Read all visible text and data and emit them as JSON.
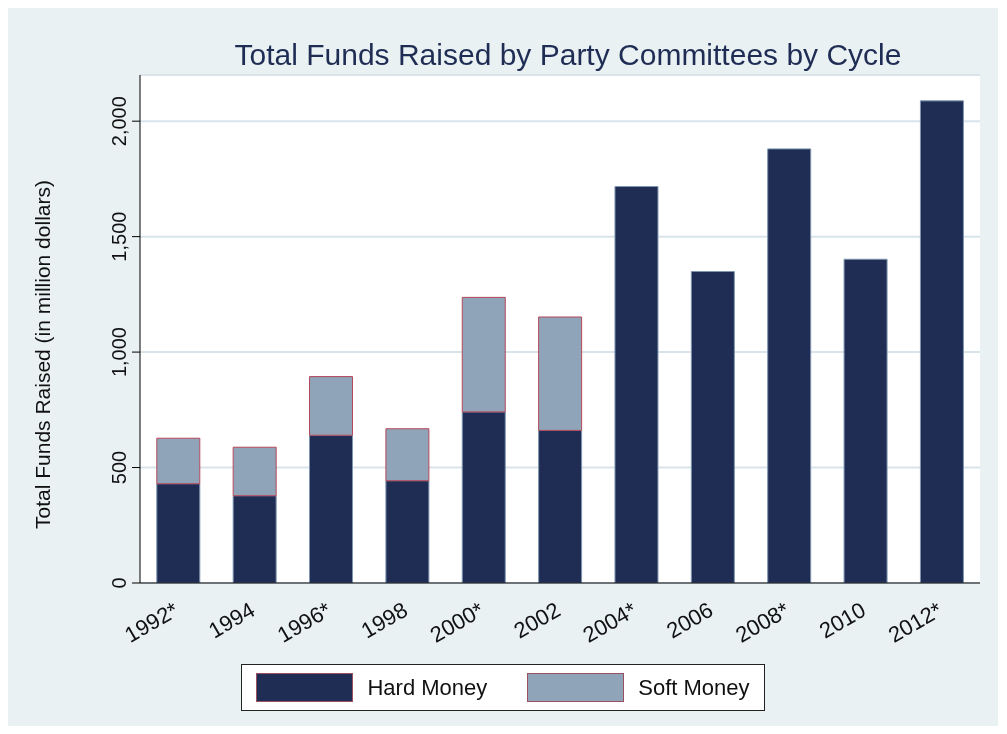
{
  "chart_data": {
    "type": "bar",
    "title": "Total Funds Raised by Party Committees by Cycle",
    "ylabel": "Total Funds Raised (in million dollars)",
    "categories": [
      "1992*",
      "1994",
      "1996*",
      "1998",
      "2000*",
      "2002",
      "2004*",
      "2006",
      "2008*",
      "2010",
      "2012*"
    ],
    "series": [
      {
        "name": "Hard Money",
        "color": "#1f2d54",
        "values": [
          430,
          378,
          640,
          443,
          741,
          661,
          1717,
          1349,
          1880,
          1402,
          2088
        ]
      },
      {
        "name": "Soft Money",
        "color": "#8fa4b8",
        "values": [
          197,
          210,
          254,
          225,
          496,
          491,
          null,
          null,
          null,
          null,
          null
        ]
      }
    ],
    "stacked": true,
    "ylim": [
      0,
      2200
    ],
    "yticks": [
      0,
      500,
      {
        "value": 1000,
        "label": "1,000"
      },
      {
        "value": 1500,
        "label": "1,500"
      },
      {
        "value": 2000,
        "label": "2,000"
      }
    ],
    "grid": "y",
    "legend": "bottom"
  }
}
